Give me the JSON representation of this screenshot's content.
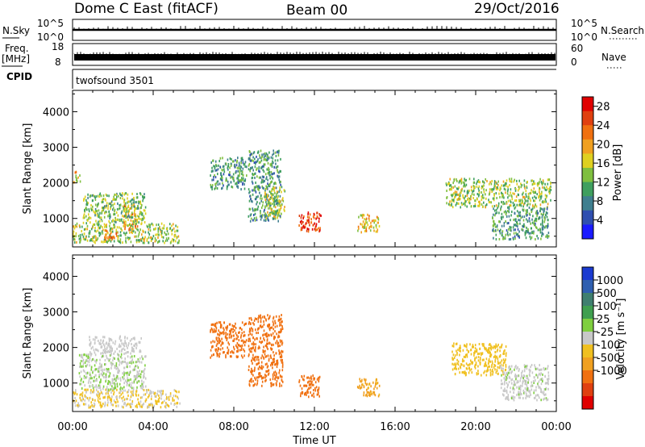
{
  "header": {
    "station": "Dome C East (fitACF)",
    "beam": "Beam 00",
    "date": "29/Oct/2016"
  },
  "summary_panels": {
    "nsky": {
      "label": "N.Sky",
      "ticks": [
        "10^5",
        "10^0"
      ]
    },
    "nsearch": {
      "label": "N.Search",
      "ticks": [
        "10^5",
        "10^0"
      ]
    },
    "freq": {
      "label_line1": "Freq.",
      "label_line2": "[MHz]",
      "ticks": [
        "18",
        "8"
      ]
    },
    "nave": {
      "label": "Nave",
      "ticks": [
        "60",
        "0"
      ]
    },
    "cpid": {
      "label": "CPID",
      "program": "twofsound 3501"
    }
  },
  "chart_data": [
    {
      "type": "heatmap",
      "name": "power",
      "ylabel": "Slant Range [km]",
      "xlabel": "",
      "ylim": [
        200,
        4600
      ],
      "xlim": [
        0,
        24
      ],
      "yticks": [
        "1000",
        "2000",
        "3000",
        "4000"
      ],
      "colorbar": {
        "label": "Power [dB]",
        "ticks": [
          "4",
          "8",
          "12",
          "16",
          "20",
          "24",
          "28"
        ],
        "colors": [
          "#1a1aff",
          "#2f4fb0",
          "#3f7f8f",
          "#3f9f5f",
          "#7fbf3f",
          "#dfd020",
          "#f0a020",
          "#f07010",
          "#e04010",
          "#e00000"
        ],
        "range": [
          0,
          30
        ]
      },
      "regions": [
        {
          "t0": 0.0,
          "t1": 5.3,
          "r0": 300,
          "r1": 850,
          "v": 14
        },
        {
          "t0": 1.5,
          "t1": 2.2,
          "r0": 350,
          "r1": 650,
          "v": 22
        },
        {
          "t0": 2.5,
          "t1": 3.2,
          "r0": 650,
          "r1": 1400,
          "v": 20
        },
        {
          "t0": 0.5,
          "t1": 3.6,
          "r0": 850,
          "r1": 1700,
          "v": 13
        },
        {
          "t0": 0.0,
          "t1": 0.4,
          "r0": 2000,
          "r1": 2300,
          "v": 17
        },
        {
          "t0": 6.8,
          "t1": 8.6,
          "r0": 1800,
          "r1": 2700,
          "v": 10
        },
        {
          "t0": 8.7,
          "t1": 10.3,
          "r0": 900,
          "r1": 2900,
          "v": 10
        },
        {
          "t0": 9.5,
          "t1": 10.5,
          "r0": 1000,
          "r1": 1900,
          "v": 15
        },
        {
          "t0": 11.2,
          "t1": 12.3,
          "r0": 600,
          "r1": 1150,
          "v": 26
        },
        {
          "t0": 14.1,
          "t1": 15.2,
          "r0": 600,
          "r1": 1100,
          "v": 18
        },
        {
          "t0": 18.5,
          "t1": 23.7,
          "r0": 1300,
          "r1": 2100,
          "v": 14
        },
        {
          "t0": 20.8,
          "t1": 23.6,
          "r0": 400,
          "r1": 1300,
          "v": 10
        }
      ]
    },
    {
      "type": "heatmap",
      "name": "velocity",
      "ylabel": "Slant Range [km]",
      "xlabel": "Time UT",
      "ylim": [
        200,
        4600
      ],
      "xlim": [
        0,
        24
      ],
      "yticks": [
        "1000",
        "2000",
        "3000",
        "4000"
      ],
      "xticks": [
        "00:00",
        "04:00",
        "08:00",
        "12:00",
        "16:00",
        "20:00",
        "00:00"
      ],
      "colorbar": {
        "label": "Velocity [m s⁻¹]",
        "ticks": [
          "1000",
          "500",
          "100",
          "25",
          "-25",
          "-100",
          "-500",
          "-1000"
        ],
        "colors": [
          "#1a3ad0",
          "#2f5fb0",
          "#3f7f6f",
          "#3f9f4f",
          "#7fcf3f",
          "#c8c8c8",
          "#f0c020",
          "#f0a020",
          "#f07010",
          "#e04010",
          "#e00000"
        ],
        "range": [
          1000,
          -1000
        ]
      },
      "regions": [
        {
          "t0": 0.0,
          "t1": 5.3,
          "r0": 300,
          "r1": 800,
          "v": -100
        },
        {
          "t0": 0.3,
          "t1": 3.6,
          "r0": 800,
          "r1": 1800,
          "v": 80
        },
        {
          "t0": 0.8,
          "t1": 3.4,
          "r0": 1800,
          "r1": 2300,
          "v": 20
        },
        {
          "t0": 6.8,
          "t1": 8.6,
          "r0": 1700,
          "r1": 2700,
          "v": -500
        },
        {
          "t0": 8.7,
          "t1": 10.4,
          "r0": 900,
          "r1": 2900,
          "v": -500
        },
        {
          "t0": 11.2,
          "t1": 12.3,
          "r0": 600,
          "r1": 1200,
          "v": -500
        },
        {
          "t0": 14.1,
          "t1": 15.2,
          "r0": 600,
          "r1": 1100,
          "v": -300
        },
        {
          "t0": 18.8,
          "t1": 21.5,
          "r0": 1200,
          "r1": 2100,
          "v": -200
        },
        {
          "t0": 21.2,
          "t1": 23.6,
          "r0": 500,
          "r1": 1500,
          "v": 60
        }
      ]
    }
  ]
}
